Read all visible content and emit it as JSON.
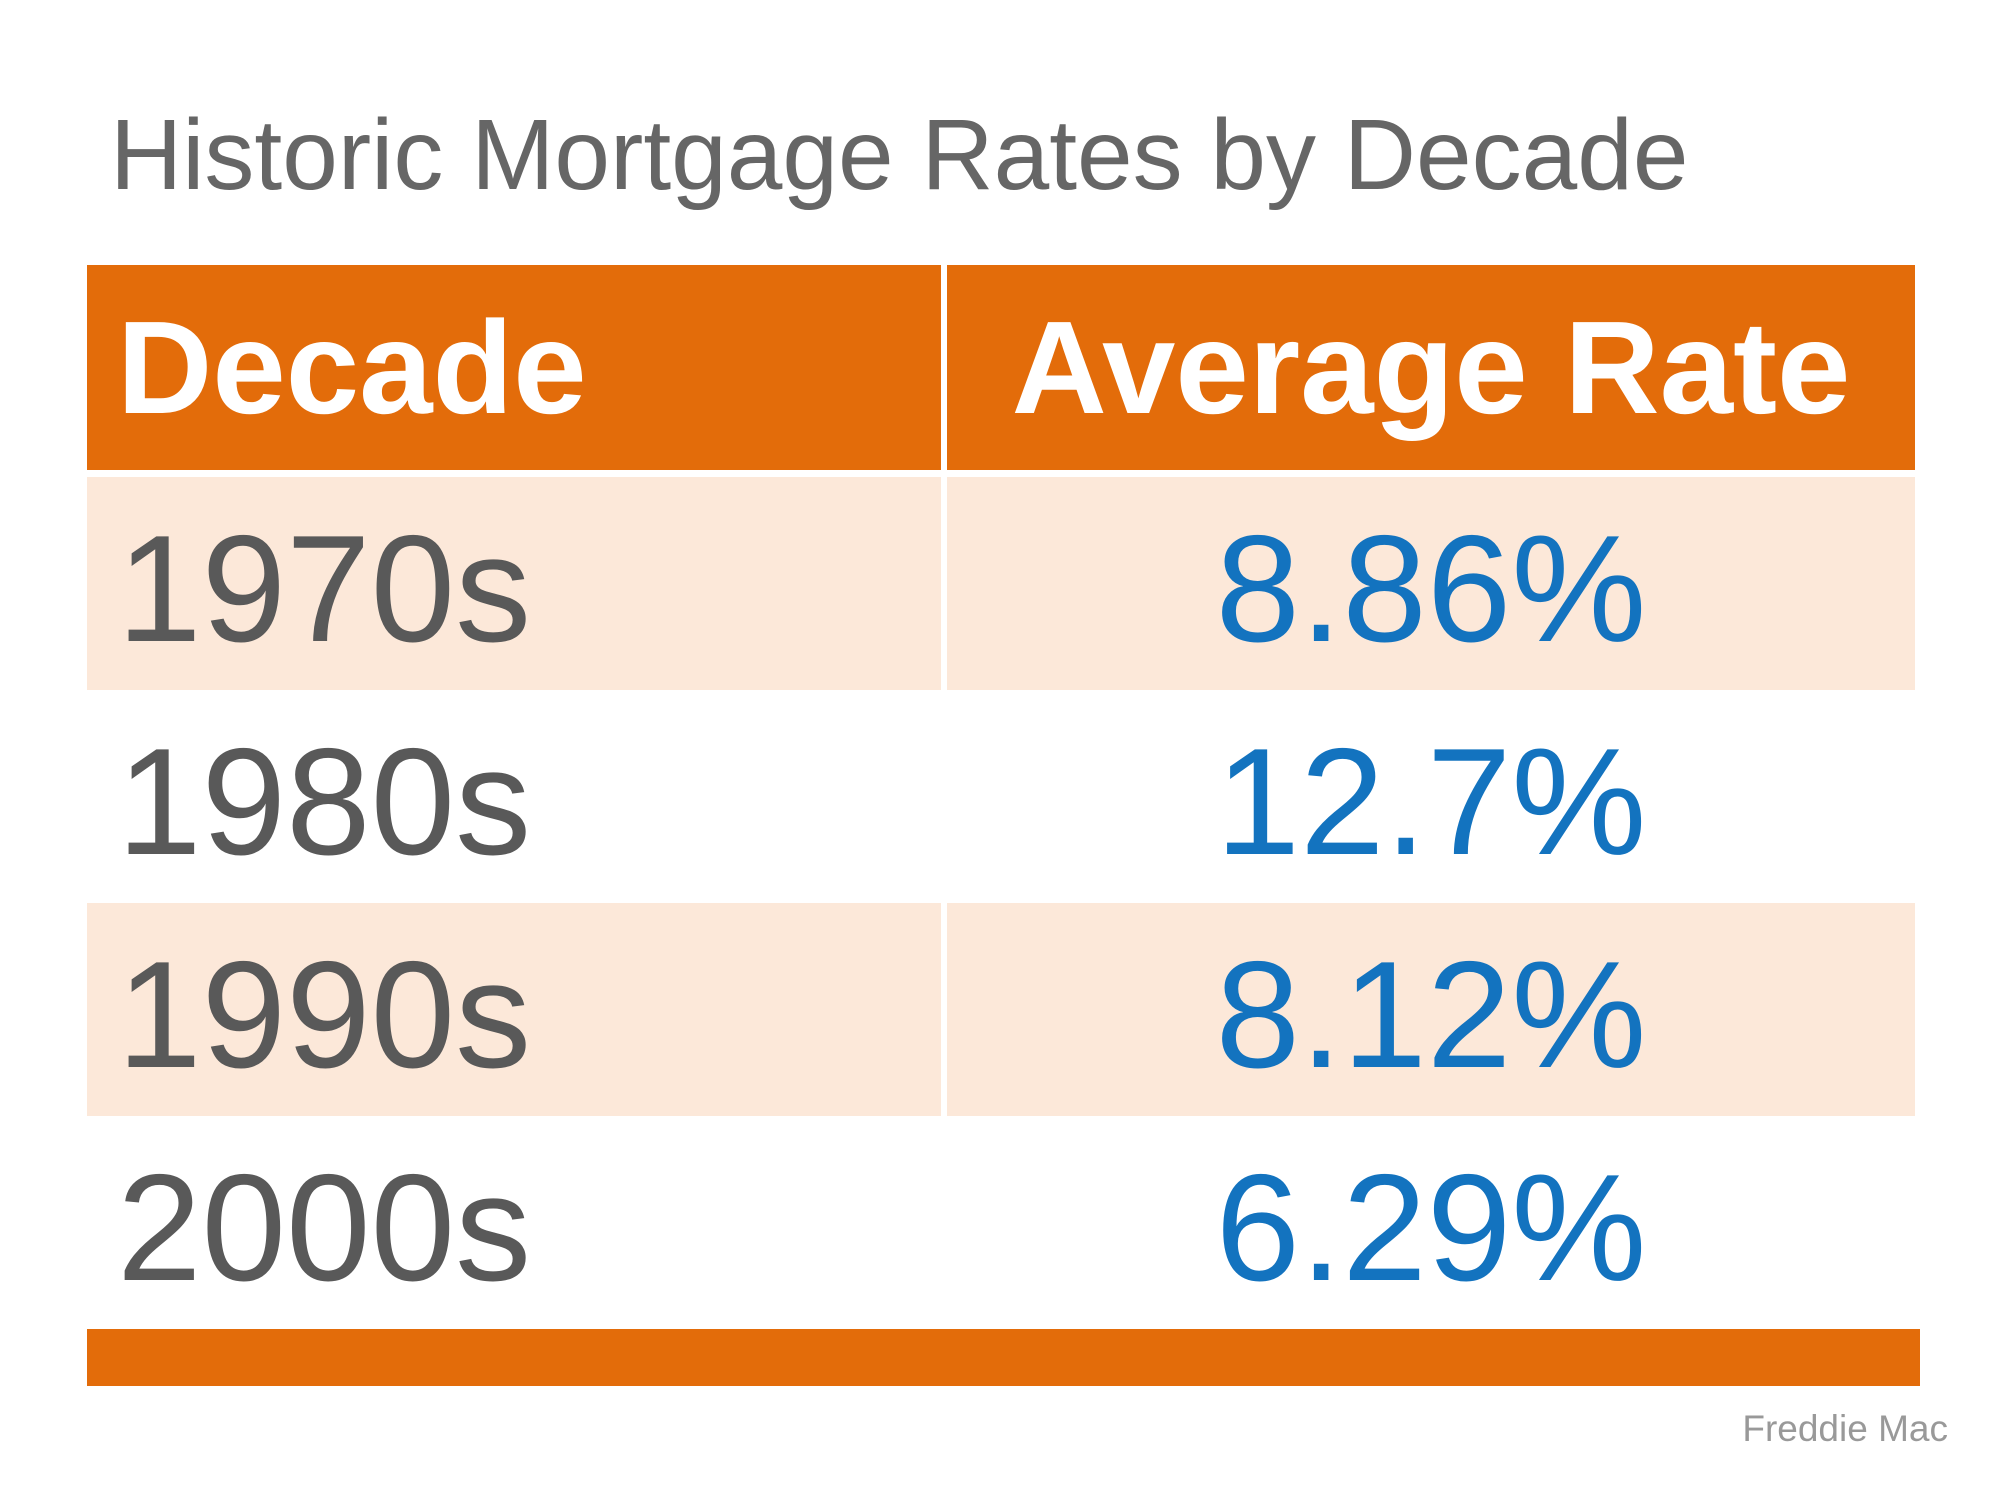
{
  "title": "Historic Mortgage Rates by Decade",
  "source": "Freddie Mac",
  "table": {
    "columns": [
      "Decade",
      "Average Rate"
    ],
    "rows": [
      {
        "decade": "1970s",
        "rate": "8.86%"
      },
      {
        "decade": "1980s",
        "rate": "12.7%"
      },
      {
        "decade": "1990s",
        "rate": "8.12%"
      },
      {
        "decade": "2000s",
        "rate": "6.29%"
      }
    ]
  },
  "chart_data": {
    "type": "table",
    "title": "Historic Mortgage Rates by Decade",
    "columns": [
      "Decade",
      "Average Rate"
    ],
    "categories": [
      "1970s",
      "1980s",
      "1990s",
      "2000s"
    ],
    "values": [
      8.86,
      12.7,
      8.12,
      6.29
    ],
    "unit": "%",
    "source": "Freddie Mac"
  },
  "colors": {
    "accent_orange": "#E36C0A",
    "row_peach": "#FCE8D9",
    "rate_blue": "#1373BF",
    "decade_gray": "#595959",
    "title_gray": "#666666",
    "source_gray": "#999999"
  }
}
